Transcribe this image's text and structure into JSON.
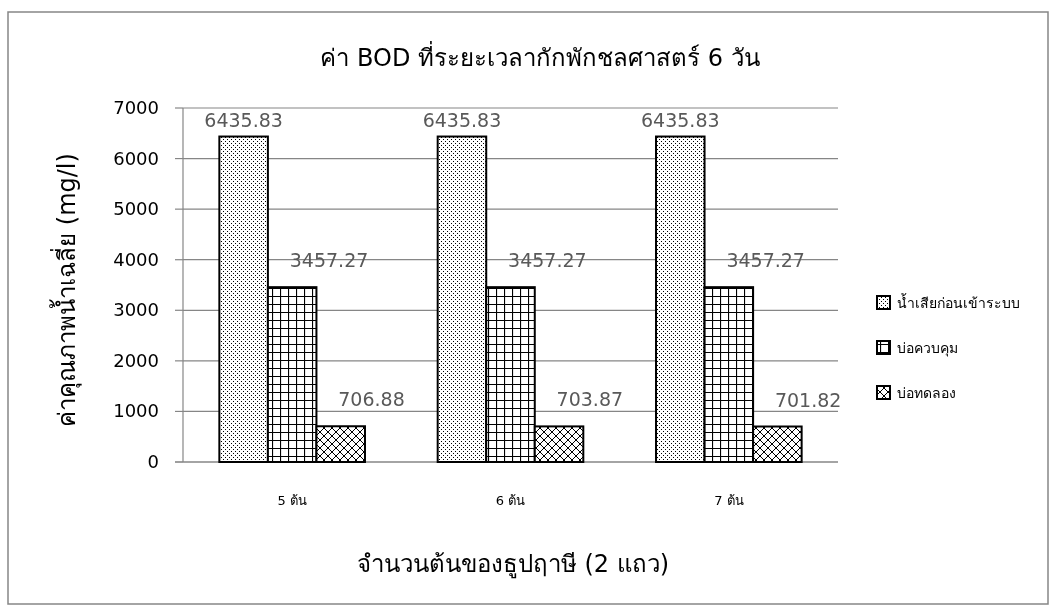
{
  "chart_data": {
    "type": "bar",
    "title": "ค่า BOD ที่ระยะเวลากักพักชลศาสตร์ 6 วัน",
    "xlabel": "จำนวนต้นของธูปฤาษี (2 แถว)",
    "ylabel": "ค่าคุณภาพน้ำเฉลี่ย (mg/l)",
    "categories": [
      "5 ต้น",
      "6 ต้น",
      "7 ต้น"
    ],
    "series": [
      {
        "name": "น้ำเสียก่อนเข้าระบบ",
        "color": "#000000",
        "values": [
          6435.83,
          6435.83,
          6435.83
        ]
      },
      {
        "name": "บ่อควบคุม",
        "color": "#000000",
        "values": [
          3457.27,
          3457.27,
          3457.27
        ]
      },
      {
        "name": "บ่อทดลอง",
        "color": "#000000",
        "values": [
          706.88,
          703.87,
          701.82
        ]
      }
    ],
    "ylim": [
      0,
      7000
    ],
    "yticks": [
      0,
      1000,
      2000,
      3000,
      4000,
      5000,
      6000,
      7000
    ],
    "grid": "y",
    "legend": "right",
    "data_labels": true
  }
}
